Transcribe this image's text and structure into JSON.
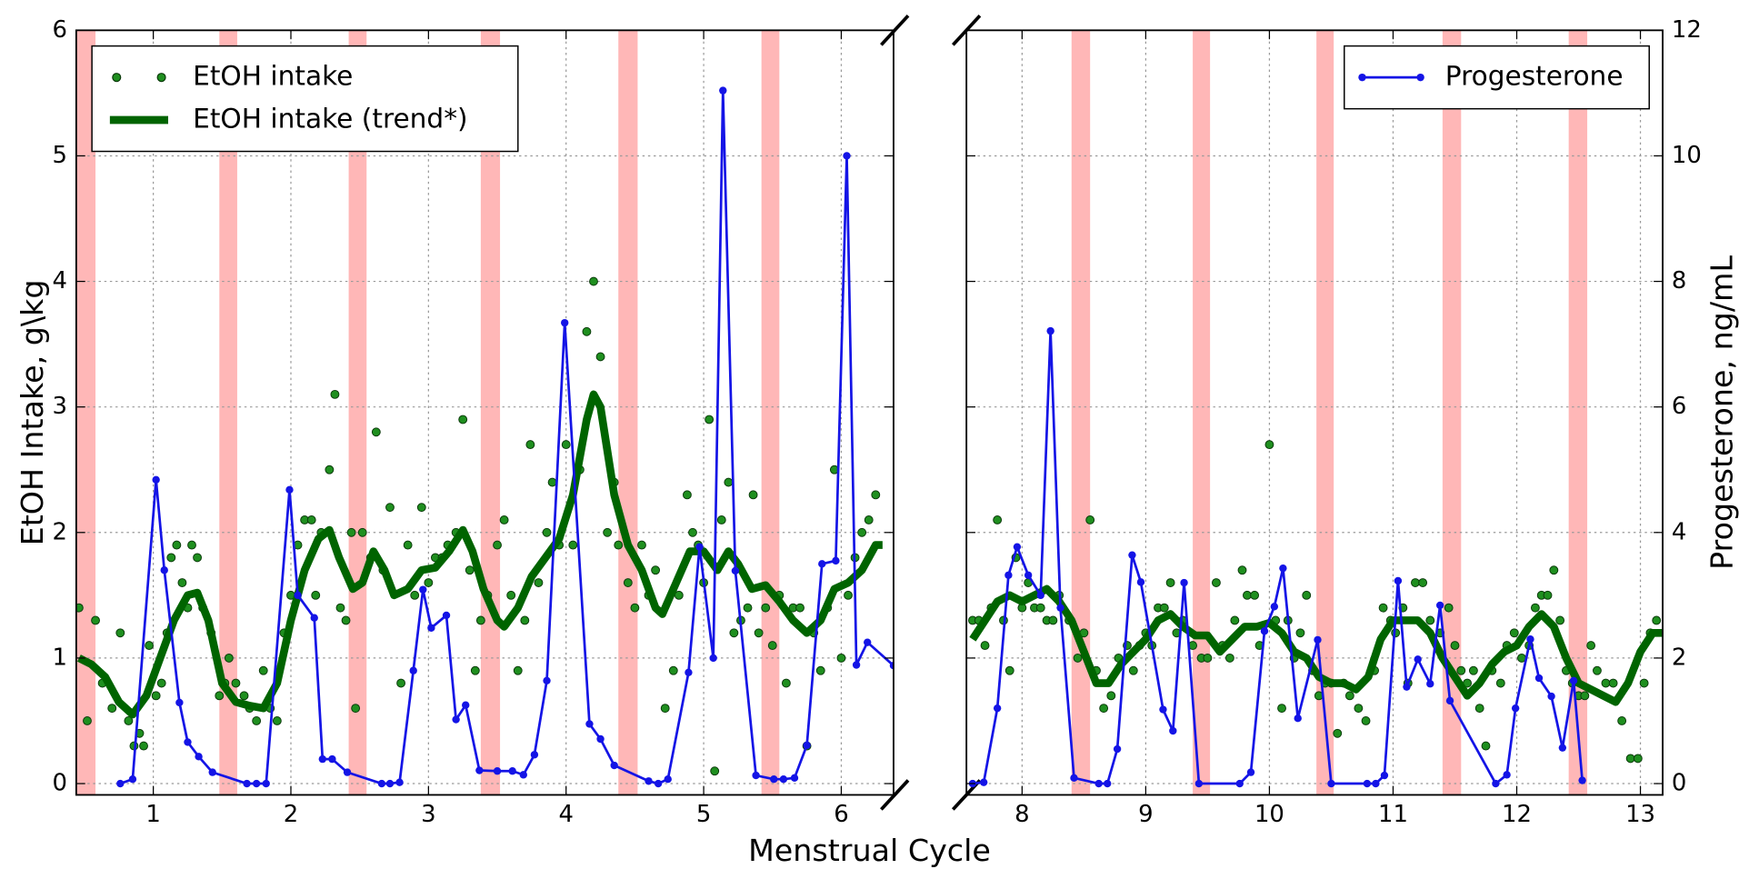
{
  "chart_data": [
    {
      "type": "line",
      "xlabel": "Menstrual Cycle",
      "ylabel": "EtOH Intake, g\\kg",
      "xlim": [
        0.44,
        6.38
      ],
      "ylim": [
        -0.09,
        6.0
      ],
      "y2lim": [
        -0.18,
        12.0
      ],
      "xticks": [
        1,
        2,
        3,
        4,
        5,
        6
      ],
      "yticks": [
        0,
        1,
        2,
        3,
        4,
        5,
        6
      ],
      "grid": true,
      "legend": "upper left",
      "span_color": "#ff9999",
      "spans": [
        [
          0.44,
          0.58
        ],
        [
          1.48,
          1.61
        ],
        [
          2.42,
          2.55
        ],
        [
          3.38,
          3.52
        ],
        [
          4.38,
          4.52
        ],
        [
          5.42,
          5.55
        ]
      ],
      "series": [
        {
          "name": "EtOH intake",
          "type": "scatter",
          "color": "#1f8f1f",
          "x": [
            0.46,
            0.52,
            0.58,
            0.63,
            0.7,
            0.76,
            0.82,
            0.86,
            0.9,
            0.93,
            0.97,
            1.02,
            1.06,
            1.1,
            1.13,
            1.17,
            1.21,
            1.25,
            1.28,
            1.32,
            1.36,
            1.42,
            1.48,
            1.52,
            1.55,
            1.6,
            1.66,
            1.7,
            1.75,
            1.8,
            1.85,
            1.9,
            1.95,
            2.0,
            2.05,
            2.1,
            2.15,
            2.18,
            2.22,
            2.28,
            2.32,
            2.36,
            2.4,
            2.44,
            2.47,
            2.52,
            2.58,
            2.62,
            2.67,
            2.72,
            2.8,
            2.85,
            2.9,
            2.95,
            3.0,
            3.05,
            3.1,
            3.14,
            3.2,
            3.25,
            3.3,
            3.34,
            3.38,
            3.43,
            3.5,
            3.55,
            3.6,
            3.65,
            3.7,
            3.74,
            3.8,
            3.86,
            3.9,
            3.95,
            4.0,
            4.05,
            4.1,
            4.15,
            4.2,
            4.25,
            4.3,
            4.35,
            4.38,
            4.45,
            4.5,
            4.55,
            4.6,
            4.65,
            4.72,
            4.78,
            4.82,
            4.88,
            4.92,
            4.96,
            5.0,
            5.04,
            5.08,
            5.13,
            5.18,
            5.22,
            5.27,
            5.32,
            5.36,
            5.4,
            5.45,
            5.5,
            5.55,
            5.6,
            5.65,
            5.7,
            5.75,
            5.8,
            5.85,
            5.9,
            5.95,
            6.0,
            6.05,
            6.1,
            6.15,
            6.2,
            6.25
          ],
          "values": [
            1.4,
            0.5,
            1.3,
            0.8,
            0.6,
            1.2,
            0.5,
            0.3,
            0.4,
            0.3,
            1.1,
            0.7,
            0.8,
            1.2,
            1.8,
            1.9,
            1.6,
            1.4,
            1.9,
            1.8,
            1.4,
            1.2,
            0.7,
            0.8,
            1.0,
            0.8,
            0.7,
            0.6,
            0.5,
            0.9,
            0.6,
            0.5,
            1.2,
            1.5,
            1.9,
            2.1,
            2.1,
            1.5,
            2.0,
            2.5,
            3.1,
            1.4,
            1.3,
            2.0,
            0.6,
            2.0,
            1.8,
            2.8,
            1.7,
            2.2,
            0.8,
            1.9,
            1.5,
            2.2,
            1.6,
            1.8,
            1.8,
            1.9,
            2.0,
            2.9,
            1.7,
            0.9,
            1.3,
            1.5,
            1.9,
            2.1,
            1.5,
            0.9,
            1.3,
            2.7,
            1.6,
            2.0,
            2.4,
            1.9,
            2.7,
            1.9,
            2.5,
            3.6,
            4.0,
            3.4,
            2.0,
            2.4,
            1.9,
            1.6,
            1.4,
            1.9,
            1.5,
            1.7,
            0.6,
            0.9,
            1.5,
            2.3,
            2.0,
            1.9,
            1.6,
            2.9,
            0.1,
            2.1,
            2.4,
            1.2,
            1.3,
            1.4,
            2.3,
            1.2,
            1.4,
            1.1,
            1.5,
            0.8,
            1.4,
            1.4,
            0.3,
            1.2,
            0.9,
            1.4,
            2.5,
            1.0,
            1.5,
            1.8,
            2.0,
            2.1,
            2.3
          ]
        },
        {
          "name": "EtOH intake (trend*)",
          "type": "line",
          "color": "#006400",
          "x": [
            0.46,
            0.55,
            0.65,
            0.75,
            0.85,
            0.95,
            1.05,
            1.15,
            1.25,
            1.32,
            1.4,
            1.5,
            1.6,
            1.7,
            1.8,
            1.9,
            2.0,
            2.1,
            2.2,
            2.28,
            2.35,
            2.45,
            2.52,
            2.6,
            2.68,
            2.75,
            2.85,
            2.95,
            3.05,
            3.15,
            3.25,
            3.32,
            3.4,
            3.5,
            3.55,
            3.65,
            3.75,
            3.85,
            3.95,
            4.05,
            4.15,
            4.2,
            4.25,
            4.35,
            4.45,
            4.55,
            4.65,
            4.7,
            4.8,
            4.9,
            5.0,
            5.1,
            5.18,
            5.25,
            5.35,
            5.45,
            5.55,
            5.65,
            5.75,
            5.85,
            5.95,
            6.05,
            6.15,
            6.25,
            6.3
          ],
          "values": [
            1.0,
            0.95,
            0.85,
            0.65,
            0.55,
            0.7,
            1.0,
            1.3,
            1.5,
            1.52,
            1.3,
            0.8,
            0.65,
            0.62,
            0.6,
            0.8,
            1.3,
            1.7,
            1.95,
            2.02,
            1.8,
            1.55,
            1.6,
            1.85,
            1.7,
            1.5,
            1.55,
            1.7,
            1.72,
            1.85,
            2.02,
            1.85,
            1.55,
            1.3,
            1.25,
            1.4,
            1.65,
            1.8,
            1.95,
            2.3,
            2.9,
            3.1,
            3.0,
            2.3,
            1.9,
            1.7,
            1.4,
            1.35,
            1.6,
            1.85,
            1.85,
            1.7,
            1.85,
            1.75,
            1.55,
            1.58,
            1.45,
            1.3,
            1.2,
            1.3,
            1.55,
            1.6,
            1.7,
            1.9,
            1.9
          ]
        },
        {
          "type": "line",
          "marker": true,
          "axis": "y2",
          "color": "#1414e6",
          "x": [
            0.76,
            0.85,
            1.02,
            1.08,
            1.19,
            1.25,
            1.33,
            1.43,
            1.68,
            1.75,
            1.82,
            1.99,
            2.05,
            2.17,
            2.23,
            2.3,
            2.41,
            2.66,
            2.72,
            2.79,
            2.89,
            2.96,
            3.02,
            3.13,
            3.2,
            3.27,
            3.37,
            3.5,
            3.61,
            3.69,
            3.77,
            3.86,
            3.99,
            4.17,
            4.25,
            4.35,
            4.6,
            4.67,
            4.74,
            4.89,
            4.97,
            5.07,
            5.14,
            5.23,
            5.38,
            5.51,
            5.58,
            5.66,
            5.75,
            5.86,
            5.96,
            6.04,
            6.11,
            6.19,
            6.38
          ],
          "values": [
            0,
            0.07,
            4.84,
            3.4,
            1.29,
            0.66,
            0.43,
            0.18,
            0,
            0,
            0,
            4.68,
            3.0,
            2.64,
            0.39,
            0.39,
            0.18,
            0,
            0,
            0.02,
            1.8,
            3.09,
            2.48,
            2.68,
            1.02,
            1.25,
            0.21,
            0.2,
            0.2,
            0.14,
            0.46,
            1.64,
            7.34,
            0.95,
            0.71,
            0.29,
            0.04,
            0,
            0.07,
            1.77,
            3.77,
            2.0,
            11.04,
            3.39,
            0.13,
            0.07,
            0.07,
            0.09,
            0.61,
            3.5,
            3.55,
            10.0,
            1.89,
            2.25,
            1.88
          ]
        }
      ]
    },
    {
      "type": "line",
      "y2label": "Progesterone, ng/mL",
      "xlim": [
        7.55,
        13.18
      ],
      "ylim": [
        -0.09,
        6.0
      ],
      "y2lim": [
        -0.18,
        12.0
      ],
      "xticks": [
        8,
        9,
        10,
        11,
        12,
        13
      ],
      "y2ticks": [
        0,
        2,
        4,
        6,
        8,
        10,
        12
      ],
      "grid": true,
      "legend": "upper right",
      "span_color": "#ff9999",
      "spans": [
        [
          8.4,
          8.55
        ],
        [
          9.38,
          9.52
        ],
        [
          10.38,
          10.52
        ],
        [
          11.4,
          11.55
        ],
        [
          12.42,
          12.57
        ]
      ],
      "series": [
        {
          "type": "scatter",
          "color": "#1f8f1f",
          "x": [
            7.6,
            7.65,
            7.7,
            7.75,
            7.8,
            7.85,
            7.9,
            7.95,
            8.0,
            8.05,
            8.1,
            8.15,
            8.2,
            8.25,
            8.3,
            8.38,
            8.45,
            8.5,
            8.55,
            8.6,
            8.66,
            8.72,
            8.78,
            8.85,
            8.9,
            8.95,
            9.0,
            9.05,
            9.1,
            9.15,
            9.2,
            9.25,
            9.3,
            9.38,
            9.45,
            9.5,
            9.57,
            9.62,
            9.68,
            9.72,
            9.78,
            9.82,
            9.88,
            9.92,
            10.0,
            10.05,
            10.1,
            10.15,
            10.2,
            10.25,
            10.3,
            10.35,
            10.4,
            10.45,
            10.5,
            10.55,
            10.6,
            10.65,
            10.72,
            10.78,
            10.85,
            10.92,
            10.98,
            11.02,
            11.08,
            11.12,
            11.18,
            11.24,
            11.3,
            11.38,
            11.45,
            11.5,
            11.55,
            11.6,
            11.65,
            11.7,
            11.75,
            11.8,
            11.87,
            11.92,
            11.98,
            12.04,
            12.1,
            12.15,
            12.2,
            12.25,
            12.3,
            12.35,
            12.4,
            12.45,
            12.5,
            12.55,
            12.6,
            12.65,
            12.72,
            12.78,
            12.85,
            12.92,
            12.98,
            13.03,
            13.08,
            13.13
          ],
          "values": [
            1.3,
            1.3,
            1.1,
            1.4,
            2.1,
            1.3,
            0.9,
            1.8,
            1.4,
            1.6,
            1.4,
            1.4,
            1.3,
            1.3,
            1.5,
            1.3,
            1.0,
            1.2,
            2.1,
            0.9,
            0.6,
            0.7,
            1.0,
            1.1,
            0.9,
            1.1,
            1.2,
            1.1,
            1.4,
            1.4,
            1.6,
            1.2,
            1.3,
            1.1,
            1.0,
            1.0,
            1.6,
            1.1,
            1.0,
            1.3,
            1.7,
            1.5,
            1.5,
            1.1,
            2.7,
            1.3,
            0.6,
            1.3,
            1.0,
            1.2,
            1.5,
            0.9,
            0.7,
            0.8,
            0.8,
            0.4,
            0.8,
            0.7,
            0.6,
            0.5,
            0.9,
            1.4,
            1.3,
            1.2,
            1.4,
            0.8,
            1.6,
            1.6,
            1.3,
            1.2,
            1.4,
            1.1,
            0.9,
            0.8,
            0.9,
            0.6,
            0.3,
            0.9,
            0.8,
            1.1,
            1.2,
            1.0,
            1.1,
            1.4,
            1.5,
            1.5,
            1.7,
            1.3,
            0.9,
            0.8,
            0.7,
            0.7,
            1.1,
            0.9,
            0.8,
            0.8,
            0.5,
            0.2,
            0.2,
            0.8,
            1.2,
            1.3
          ]
        },
        {
          "type": "line",
          "color": "#006400",
          "x": [
            7.6,
            7.7,
            7.8,
            7.9,
            8.0,
            8.1,
            8.2,
            8.3,
            8.4,
            8.5,
            8.6,
            8.7,
            8.8,
            8.9,
            9.0,
            9.1,
            9.2,
            9.3,
            9.4,
            9.5,
            9.6,
            9.7,
            9.8,
            9.9,
            10.0,
            10.1,
            10.2,
            10.3,
            10.4,
            10.5,
            10.6,
            10.7,
            10.8,
            10.9,
            11.0,
            11.1,
            11.2,
            11.3,
            11.4,
            11.5,
            11.6,
            11.7,
            11.8,
            11.9,
            12.0,
            12.1,
            12.2,
            12.3,
            12.4,
            12.5,
            12.6,
            12.7,
            12.8,
            12.9,
            13.0,
            13.1,
            13.18
          ],
          "values": [
            1.15,
            1.3,
            1.45,
            1.5,
            1.45,
            1.5,
            1.55,
            1.45,
            1.3,
            1.05,
            0.8,
            0.8,
            0.95,
            1.05,
            1.15,
            1.3,
            1.35,
            1.25,
            1.18,
            1.18,
            1.05,
            1.15,
            1.25,
            1.25,
            1.28,
            1.2,
            1.05,
            1.0,
            0.85,
            0.8,
            0.8,
            0.75,
            0.85,
            1.15,
            1.3,
            1.3,
            1.3,
            1.2,
            1.0,
            0.85,
            0.7,
            0.8,
            0.95,
            1.05,
            1.1,
            1.25,
            1.35,
            1.25,
            1.0,
            0.8,
            0.75,
            0.7,
            0.65,
            0.8,
            1.05,
            1.2,
            1.2
          ]
        },
        {
          "name": "Progesterone",
          "type": "line",
          "marker": true,
          "axis": "y2",
          "color": "#1414e6",
          "x": [
            7.6,
            7.69,
            7.8,
            7.89,
            7.96,
            8.05,
            8.15,
            8.23,
            8.31,
            8.42,
            8.62,
            8.69,
            8.77,
            8.89,
            8.96,
            9.14,
            9.22,
            9.31,
            9.43,
            9.76,
            9.85,
            9.96,
            10.04,
            10.11,
            10.23,
            10.39,
            10.5,
            10.79,
            10.86,
            10.93,
            11.04,
            11.11,
            11.2,
            11.3,
            11.38,
            11.46,
            11.83,
            11.92,
            11.99,
            12.11,
            12.18,
            12.28,
            12.37,
            12.46,
            12.53
          ],
          "values": [
            0,
            0.02,
            1.2,
            3.32,
            3.77,
            3.32,
            3.0,
            7.21,
            2.8,
            0.09,
            0,
            0,
            0.55,
            3.64,
            3.21,
            1.18,
            0.84,
            3.2,
            0,
            0,
            0.18,
            2.43,
            2.82,
            3.43,
            1.04,
            2.29,
            0,
            0,
            0,
            0.13,
            3.23,
            1.54,
            1.98,
            1.59,
            2.84,
            1.32,
            0,
            0.14,
            1.2,
            2.3,
            1.68,
            1.39,
            0.57,
            1.64,
            0.05
          ]
        }
      ]
    }
  ]
}
